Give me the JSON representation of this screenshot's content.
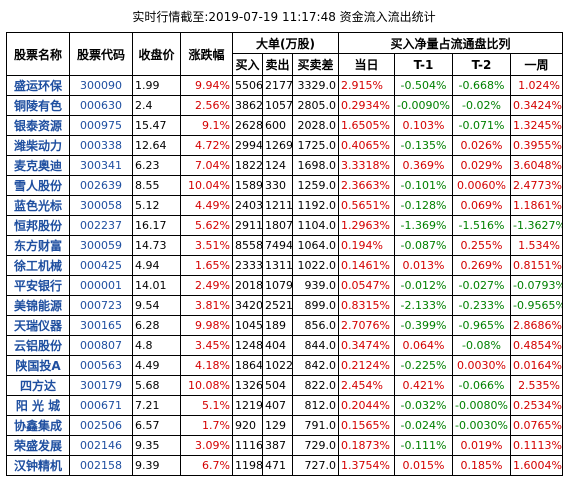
{
  "title": "实时行情截至:2019-07-19 11:17:48 资金流入流出统计",
  "headers": {
    "name": "股票名称",
    "code": "股票代码",
    "price": "收盘价",
    "change": "涨跌幅",
    "big_order": "大单(万股)",
    "net_ratio": "买入净量占流通盘比列",
    "buy": "买入",
    "sell": "卖出",
    "net": "买卖差",
    "today": "当日",
    "t1": "T-1",
    "t2": "T-2",
    "week": "一周"
  },
  "colors": {
    "link": "#1f4fa0",
    "red": "#d40000",
    "green": "#008000"
  },
  "rows": [
    {
      "name": "盛运环保",
      "code": "300090",
      "price": "1.99",
      "change": "9.94%",
      "buy": "5506",
      "sell": "2177",
      "net": "3329.0",
      "today": "2.915%",
      "t1": "-0.504%",
      "t2": "-0.668%",
      "week": "1.024%"
    },
    {
      "name": "铜陵有色",
      "code": "000630",
      "price": "2.4",
      "change": "2.56%",
      "buy": "3862",
      "sell": "1057",
      "net": "2805.0",
      "today": "0.2934%",
      "t1": "-0.0090%",
      "t2": "-0.02%",
      "week": "0.3424%"
    },
    {
      "name": "银泰资源",
      "code": "000975",
      "price": "15.47",
      "change": "9.1%",
      "buy": "2628",
      "sell": "600",
      "net": "2028.0",
      "today": "1.6505%",
      "t1": "0.103%",
      "t2": "-0.071%",
      "week": "1.3245%"
    },
    {
      "name": "潍柴动力",
      "code": "000338",
      "price": "12.64",
      "change": "4.72%",
      "buy": "2994",
      "sell": "1269",
      "net": "1725.0",
      "today": "0.4065%",
      "t1": "-0.135%",
      "t2": "0.026%",
      "week": "0.3955%"
    },
    {
      "name": "麦克奥迪",
      "code": "300341",
      "price": "6.23",
      "change": "7.04%",
      "buy": "1822",
      "sell": "124",
      "net": "1698.0",
      "today": "3.3318%",
      "t1": "0.369%",
      "t2": "0.029%",
      "week": "3.6048%"
    },
    {
      "name": "雪人股份",
      "code": "002639",
      "price": "8.55",
      "change": "10.04%",
      "buy": "1589",
      "sell": "330",
      "net": "1259.0",
      "today": "2.3663%",
      "t1": "-0.101%",
      "t2": "0.0060%",
      "week": "2.4773%"
    },
    {
      "name": "蓝色光标",
      "code": "300058",
      "price": "5.12",
      "change": "4.49%",
      "buy": "2403",
      "sell": "1211",
      "net": "1192.0",
      "today": "0.5651%",
      "t1": "-0.128%",
      "t2": "0.069%",
      "week": "1.1861%"
    },
    {
      "name": "恒邦股份",
      "code": "002237",
      "price": "16.17",
      "change": "5.62%",
      "buy": "2911",
      "sell": "1807",
      "net": "1104.0",
      "today": "1.2963%",
      "t1": "-1.369%",
      "t2": "-1.516%",
      "week": "-1.3627%"
    },
    {
      "name": "东方财富",
      "code": "300059",
      "price": "14.73",
      "change": "3.51%",
      "buy": "8558",
      "sell": "7494",
      "net": "1064.0",
      "today": "0.194%",
      "t1": "-0.087%",
      "t2": "0.255%",
      "week": "1.534%"
    },
    {
      "name": "徐工机械",
      "code": "000425",
      "price": "4.94",
      "change": "1.65%",
      "buy": "2333",
      "sell": "1311",
      "net": "1022.0",
      "today": "0.1461%",
      "t1": "0.013%",
      "t2": "0.269%",
      "week": "0.8151%"
    },
    {
      "name": "平安银行",
      "code": "000001",
      "price": "14.01",
      "change": "2.49%",
      "buy": "2018",
      "sell": "1079",
      "net": "939.0",
      "today": "0.0547%",
      "t1": "-0.012%",
      "t2": "-0.027%",
      "week": "-0.0793%"
    },
    {
      "name": "美锦能源",
      "code": "000723",
      "price": "9.54",
      "change": "3.81%",
      "buy": "3420",
      "sell": "2521",
      "net": "899.0",
      "today": "0.8315%",
      "t1": "-2.133%",
      "t2": "-0.233%",
      "week": "-0.9565%"
    },
    {
      "name": "天瑞仪器",
      "code": "300165",
      "price": "6.28",
      "change": "9.98%",
      "buy": "1045",
      "sell": "189",
      "net": "856.0",
      "today": "2.7076%",
      "t1": "-0.399%",
      "t2": "-0.965%",
      "week": "2.8686%"
    },
    {
      "name": "云铝股份",
      "code": "000807",
      "price": "4.8",
      "change": "3.45%",
      "buy": "1248",
      "sell": "404",
      "net": "844.0",
      "today": "0.3474%",
      "t1": "0.064%",
      "t2": "-0.08%",
      "week": "0.4854%"
    },
    {
      "name": "陕国投A",
      "code": "000563",
      "price": "4.49",
      "change": "4.18%",
      "buy": "1864",
      "sell": "1022",
      "net": "842.0",
      "today": "0.2124%",
      "t1": "-0.225%",
      "t2": "0.0030%",
      "week": "0.0164%"
    },
    {
      "name": "四方达",
      "code": "300179",
      "price": "5.68",
      "change": "10.08%",
      "buy": "1326",
      "sell": "504",
      "net": "822.0",
      "today": "2.454%",
      "t1": "0.421%",
      "t2": "-0.066%",
      "week": "2.535%"
    },
    {
      "name": "阳 光 城",
      "code": "000671",
      "price": "7.21",
      "change": "5.1%",
      "buy": "1219",
      "sell": "407",
      "net": "812.0",
      "today": "0.2044%",
      "t1": "-0.032%",
      "t2": "-0.0080%",
      "week": "0.2534%"
    },
    {
      "name": "协鑫集成",
      "code": "002506",
      "price": "6.57",
      "change": "1.7%",
      "buy": "920",
      "sell": "129",
      "net": "791.0",
      "today": "0.1565%",
      "t1": "-0.024%",
      "t2": "-0.0030%",
      "week": "0.0765%"
    },
    {
      "name": "荣盛发展",
      "code": "002146",
      "price": "9.35",
      "change": "3.09%",
      "buy": "1116",
      "sell": "387",
      "net": "729.0",
      "today": "0.1873%",
      "t1": "-0.111%",
      "t2": "0.019%",
      "week": "0.1113%"
    },
    {
      "name": "汉钟精机",
      "code": "002158",
      "price": "9.39",
      "change": "6.7%",
      "buy": "1198",
      "sell": "471",
      "net": "727.0",
      "today": "1.3754%",
      "t1": "0.015%",
      "t2": "0.185%",
      "week": "1.6004%"
    }
  ]
}
